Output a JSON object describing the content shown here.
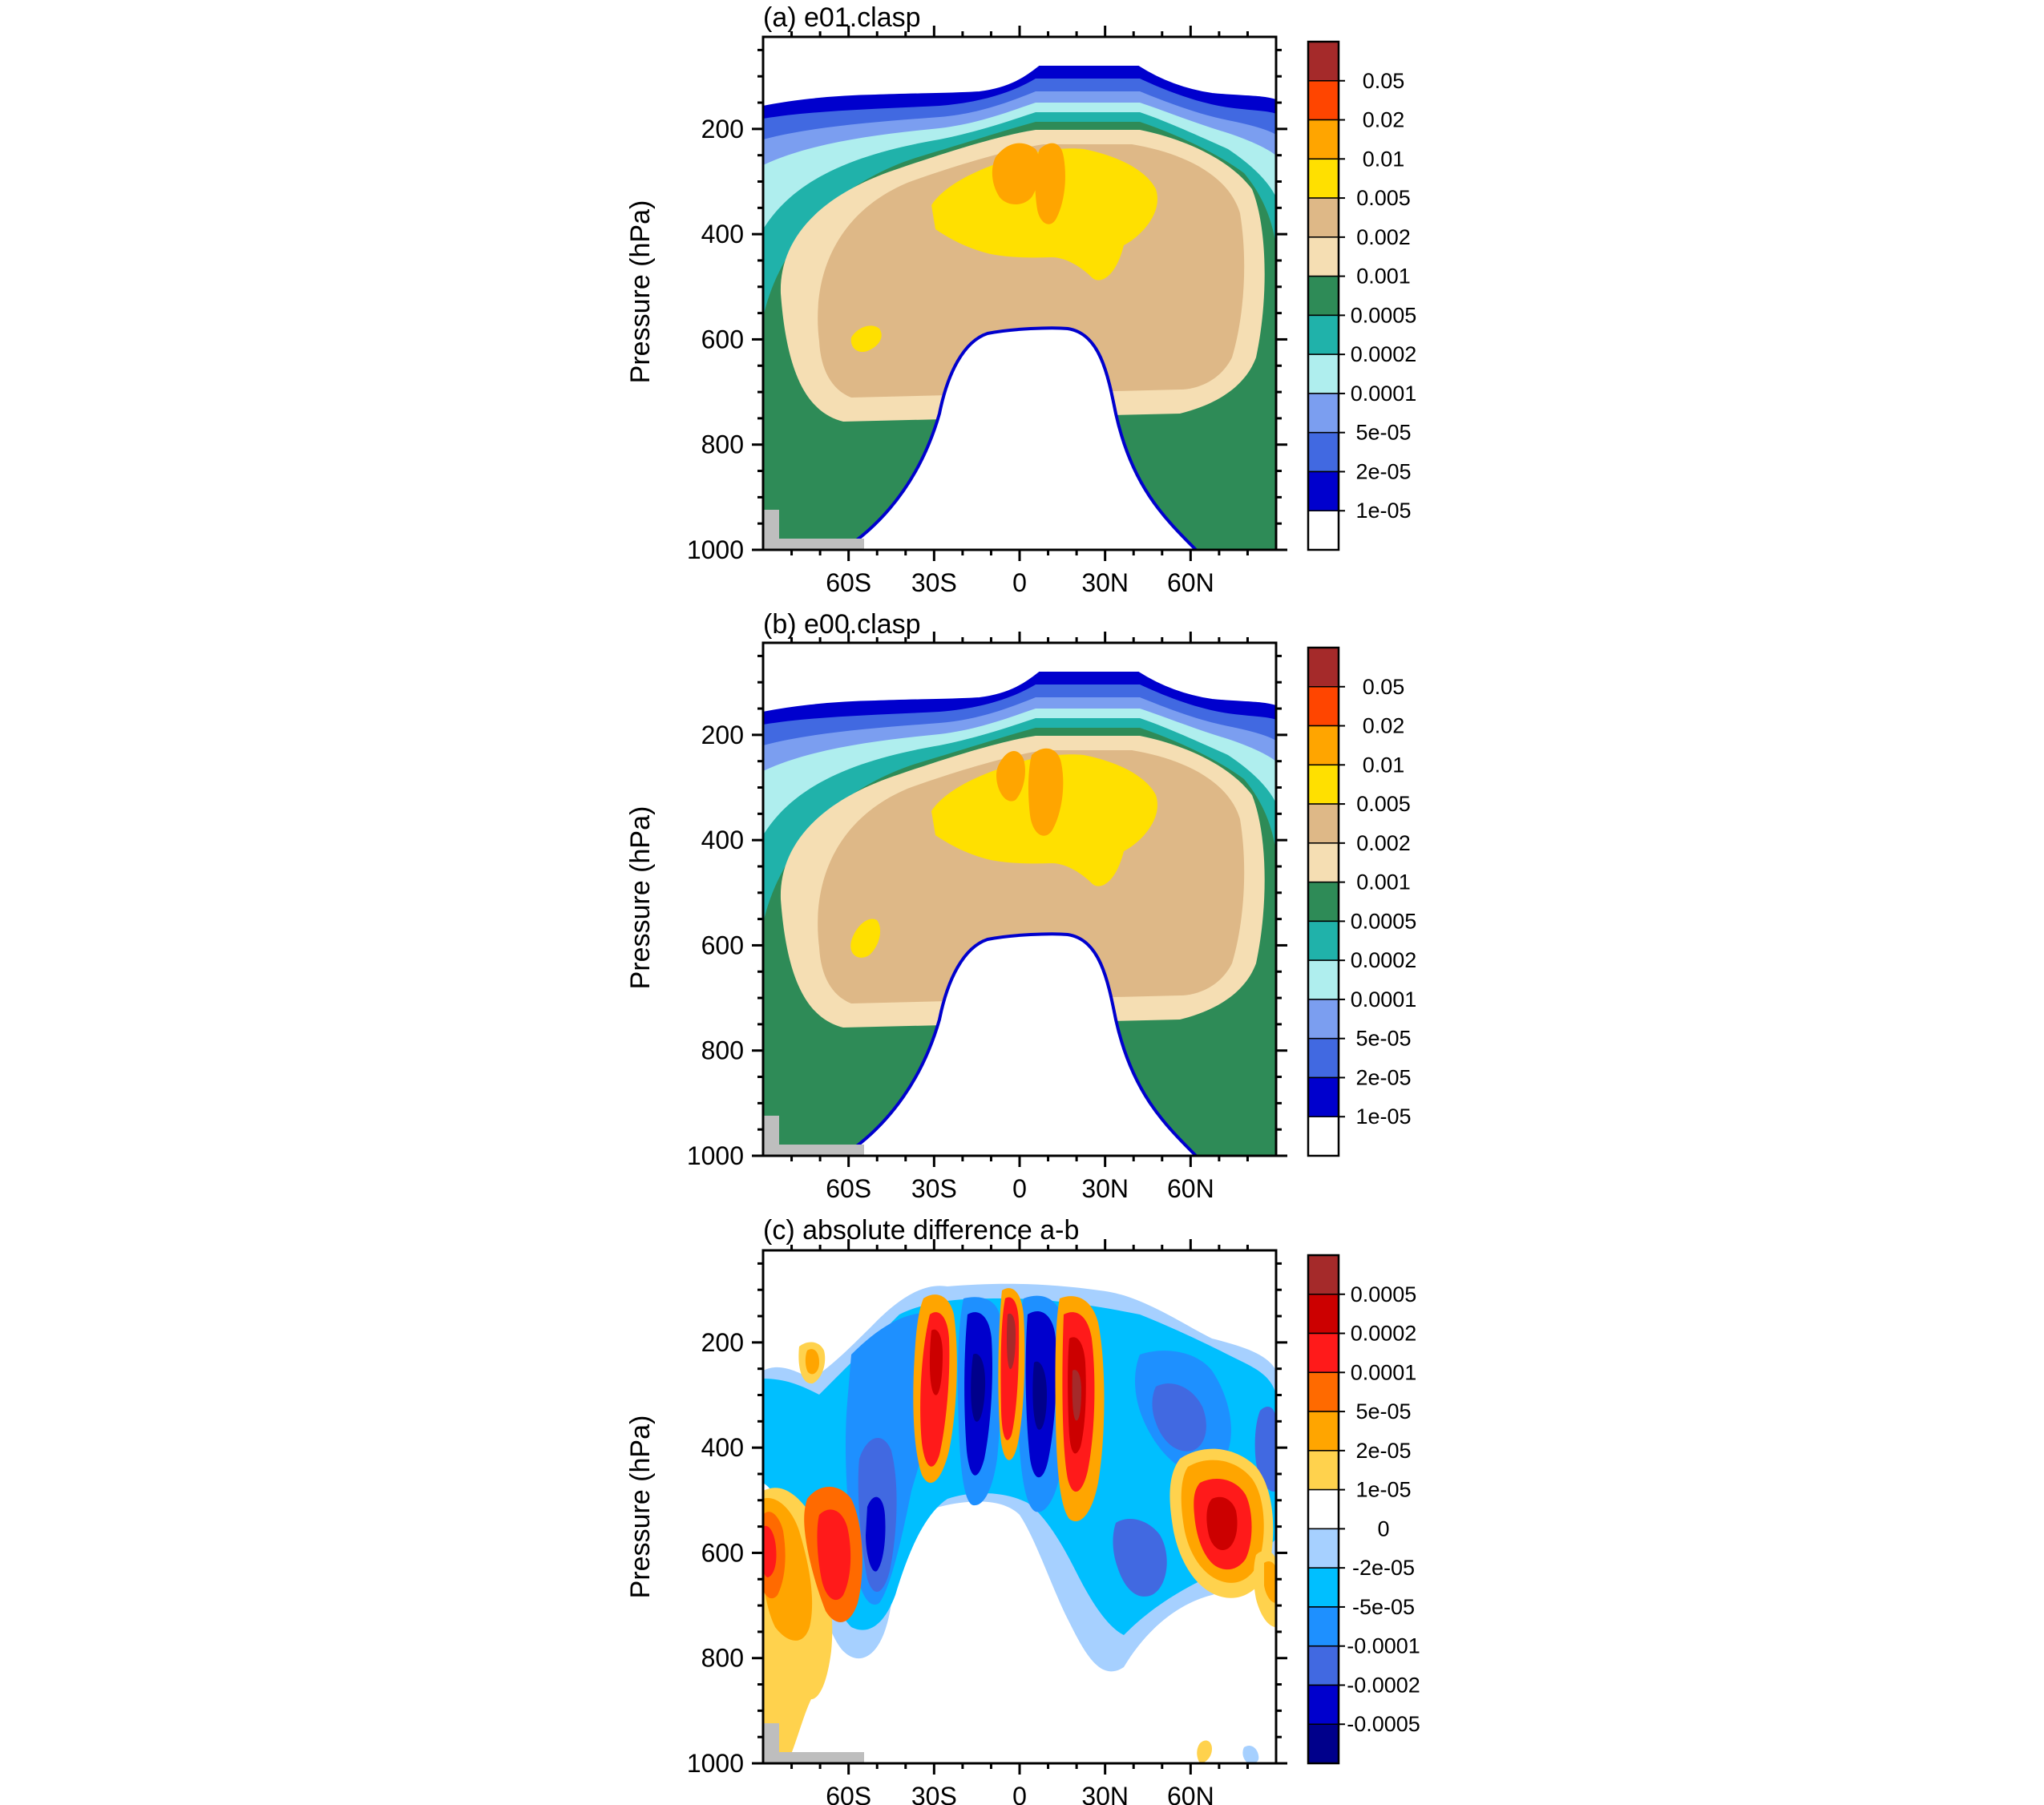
{
  "panels": [
    {
      "title": "(a) e01.clasp",
      "ylabel": "Pressure (hPa)",
      "yticks": [
        "200",
        "400",
        "600",
        "800",
        "1000"
      ],
      "xticks": [
        "60S",
        "30S",
        "0",
        "30N",
        "60N"
      ],
      "colorbar": {
        "labels": [
          "0.05",
          "0.02",
          "0.01",
          "0.005",
          "0.002",
          "0.001",
          "0.0005",
          "0.0002",
          "0.0001",
          "5e-05",
          "2e-05",
          "1e-05"
        ],
        "colors": [
          "#a52a2a",
          "#ff4500",
          "#ffa500",
          "#ffe000",
          "#deb887",
          "#f5deb3",
          "#2e8b57",
          "#20b2aa",
          "#afeeee",
          "#7b9ef0",
          "#4169e1",
          "#0000cd",
          "#ffffff"
        ]
      }
    },
    {
      "title": "(b) e00.clasp",
      "ylabel": "Pressure (hPa)",
      "yticks": [
        "200",
        "400",
        "600",
        "800",
        "1000"
      ],
      "xticks": [
        "60S",
        "30S",
        "0",
        "30N",
        "60N"
      ],
      "colorbar": {
        "labels": [
          "0.05",
          "0.02",
          "0.01",
          "0.005",
          "0.002",
          "0.001",
          "0.0005",
          "0.0002",
          "0.0001",
          "5e-05",
          "2e-05",
          "1e-05"
        ],
        "colors": [
          "#a52a2a",
          "#ff4500",
          "#ffa500",
          "#ffe000",
          "#deb887",
          "#f5deb3",
          "#2e8b57",
          "#20b2aa",
          "#afeeee",
          "#7b9ef0",
          "#4169e1",
          "#0000cd",
          "#ffffff"
        ]
      }
    },
    {
      "title": "(c) absolute difference a-b",
      "ylabel": "Pressure (hPa)",
      "yticks": [
        "200",
        "400",
        "600",
        "800",
        "1000"
      ],
      "xticks": [
        "60S",
        "30S",
        "0",
        "30N",
        "60N"
      ],
      "colorbar": {
        "labels": [
          "0.0005",
          "0.0002",
          "0.0001",
          "5e-05",
          "2e-05",
          "1e-05",
          "0",
          "-2e-05",
          "-5e-05",
          "-0.0001",
          "-0.0002",
          "-0.0005"
        ],
        "colors": [
          "#a52a2a",
          "#cc0000",
          "#ff1a1a",
          "#ff6a00",
          "#ffa500",
          "#ffd24d",
          "#ffffff",
          "#a6d0ff",
          "#00bfff",
          "#1e90ff",
          "#4169e1",
          "#0000cd",
          "#00008b"
        ]
      }
    }
  ],
  "chart_data": [
    {
      "type": "heatmap",
      "title": "(a) e01.clasp",
      "ylabel": "Pressure (hPa)",
      "yticks": [
        200,
        400,
        600,
        800,
        1000
      ],
      "xticks": [
        "60S",
        "30S",
        "0",
        "30N",
        "60N"
      ],
      "ylim": [
        1000,
        25
      ],
      "y_reversed": true,
      "levels": [
        1e-05,
        2e-05,
        5e-05,
        0.0001,
        0.0002,
        0.0005,
        0.001,
        0.002,
        0.005,
        0.01,
        0.02,
        0.05
      ],
      "colors": [
        "#ffffff",
        "#0000cd",
        "#4169e1",
        "#7b9ef0",
        "#afeeee",
        "#20b2aa",
        "#2e8b57",
        "#f5deb3",
        "#deb887",
        "#ffe000",
        "#ffa500",
        "#ff4500",
        "#a52a2a"
      ]
    },
    {
      "type": "heatmap",
      "title": "(b) e00.clasp",
      "ylabel": "Pressure (hPa)",
      "yticks": [
        200,
        400,
        600,
        800,
        1000
      ],
      "xticks": [
        "60S",
        "30S",
        "0",
        "30N",
        "60N"
      ],
      "ylim": [
        1000,
        25
      ],
      "y_reversed": true,
      "levels": [
        1e-05,
        2e-05,
        5e-05,
        0.0001,
        0.0002,
        0.0005,
        0.001,
        0.002,
        0.005,
        0.01,
        0.02,
        0.05
      ],
      "colors": [
        "#ffffff",
        "#0000cd",
        "#4169e1",
        "#7b9ef0",
        "#afeeee",
        "#20b2aa",
        "#2e8b57",
        "#f5deb3",
        "#deb887",
        "#ffe000",
        "#ffa500",
        "#ff4500",
        "#a52a2a"
      ]
    },
    {
      "type": "heatmap",
      "title": "(c) absolute difference a-b",
      "ylabel": "Pressure (hPa)",
      "yticks": [
        200,
        400,
        600,
        800,
        1000
      ],
      "xticks": [
        "60S",
        "30S",
        "0",
        "30N",
        "60N"
      ],
      "ylim": [
        1000,
        25
      ],
      "y_reversed": true,
      "levels": [
        -0.0005,
        -0.0002,
        -0.0001,
        -5e-05,
        -2e-05,
        0,
        1e-05,
        2e-05,
        5e-05,
        0.0001,
        0.0002,
        0.0005
      ],
      "colors": [
        "#00008b",
        "#0000cd",
        "#4169e1",
        "#1e90ff",
        "#00bfff",
        "#a6d0ff",
        "#ffffff",
        "#ffd24d",
        "#ffa500",
        "#ff6a00",
        "#ff1a1a",
        "#cc0000",
        "#a52a2a"
      ]
    }
  ]
}
